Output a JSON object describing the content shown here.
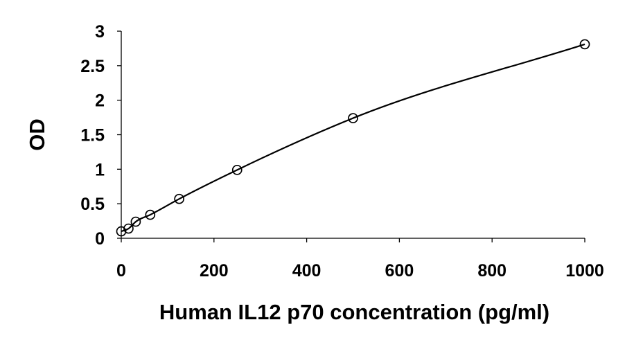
{
  "chart_data": {
    "type": "scatter",
    "title": "",
    "xlabel": "Human IL12 p70 concentration (pg/ml)",
    "ylabel": "OD",
    "xlim": [
      0,
      1000
    ],
    "ylim": [
      0,
      3
    ],
    "x_ticks": [
      0,
      200,
      400,
      600,
      800,
      1000
    ],
    "y_ticks": [
      0,
      0.5,
      1,
      1.5,
      2,
      2.5,
      3
    ],
    "x_tick_labels": [
      "0",
      "200",
      "400",
      "600",
      "800",
      "1000"
    ],
    "y_tick_labels": [
      "0",
      "0.5",
      "1",
      "1.5",
      "2",
      "2.5",
      "3"
    ],
    "grid": false,
    "legend": "none",
    "marker": "open-circle",
    "fit": "smooth-curve",
    "series": [
      {
        "x": [
          0,
          15.6,
          31.25,
          62.5,
          125,
          250,
          500,
          1000
        ],
        "y": [
          0.1,
          0.14,
          0.24,
          0.34,
          0.57,
          0.99,
          1.74,
          2.81
        ]
      }
    ]
  }
}
